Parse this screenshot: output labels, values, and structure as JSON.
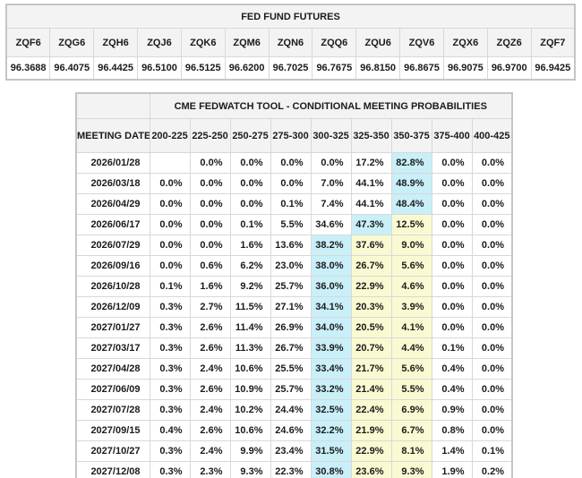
{
  "futures_table": {
    "title": "FED FUND FUTURES",
    "columns": [
      "ZQF6",
      "ZQG6",
      "ZQH6",
      "ZQJ6",
      "ZQK6",
      "ZQM6",
      "ZQN6",
      "ZQQ6",
      "ZQU6",
      "ZQV6",
      "ZQX6",
      "ZQZ6",
      "ZQF7"
    ],
    "values": [
      "96.3688",
      "96.4075",
      "96.4425",
      "96.5100",
      "96.5125",
      "96.6200",
      "96.7025",
      "96.7675",
      "96.8150",
      "96.8675",
      "96.9075",
      "96.9700",
      "96.9425"
    ]
  },
  "fedwatch_table": {
    "title": "CME FEDWATCH TOOL - CONDITIONAL MEETING PROBABILITIES",
    "date_header": "MEETING DATE",
    "range_headers": [
      "200-225",
      "225-250",
      "250-275",
      "275-300",
      "300-325",
      "325-350",
      "350-375",
      "375-400",
      "400-425"
    ],
    "rows": [
      {
        "date": "2026/01/28",
        "values": [
          "",
          "0.0%",
          "0.0%",
          "0.0%",
          "0.0%",
          "17.2%",
          "82.8%",
          "0.0%",
          "0.0%"
        ],
        "highlights": [
          "",
          "",
          "",
          "",
          "",
          "",
          "c",
          "",
          ""
        ]
      },
      {
        "date": "2026/03/18",
        "values": [
          "0.0%",
          "0.0%",
          "0.0%",
          "0.0%",
          "7.0%",
          "44.1%",
          "48.9%",
          "0.0%",
          "0.0%"
        ],
        "highlights": [
          "",
          "",
          "",
          "",
          "",
          "",
          "c",
          "",
          ""
        ]
      },
      {
        "date": "2026/04/29",
        "values": [
          "0.0%",
          "0.0%",
          "0.0%",
          "0.1%",
          "7.4%",
          "44.1%",
          "48.4%",
          "0.0%",
          "0.0%"
        ],
        "highlights": [
          "",
          "",
          "",
          "",
          "",
          "",
          "c",
          "",
          ""
        ]
      },
      {
        "date": "2026/06/17",
        "values": [
          "0.0%",
          "0.0%",
          "0.1%",
          "5.5%",
          "34.6%",
          "47.3%",
          "12.5%",
          "0.0%",
          "0.0%"
        ],
        "highlights": [
          "",
          "",
          "",
          "",
          "",
          "c",
          "y",
          "",
          ""
        ]
      },
      {
        "date": "2026/07/29",
        "values": [
          "0.0%",
          "0.0%",
          "1.6%",
          "13.6%",
          "38.2%",
          "37.6%",
          "9.0%",
          "0.0%",
          "0.0%"
        ],
        "highlights": [
          "",
          "",
          "",
          "",
          "c",
          "y",
          "y",
          "",
          ""
        ]
      },
      {
        "date": "2026/09/16",
        "values": [
          "0.0%",
          "0.6%",
          "6.2%",
          "23.0%",
          "38.0%",
          "26.7%",
          "5.6%",
          "0.0%",
          "0.0%"
        ],
        "highlights": [
          "",
          "",
          "",
          "",
          "c",
          "y",
          "y",
          "",
          ""
        ]
      },
      {
        "date": "2026/10/28",
        "values": [
          "0.1%",
          "1.6%",
          "9.2%",
          "25.7%",
          "36.0%",
          "22.9%",
          "4.6%",
          "0.0%",
          "0.0%"
        ],
        "highlights": [
          "",
          "",
          "",
          "",
          "c",
          "y",
          "y",
          "",
          ""
        ]
      },
      {
        "date": "2026/12/09",
        "values": [
          "0.3%",
          "2.7%",
          "11.5%",
          "27.1%",
          "34.1%",
          "20.3%",
          "3.9%",
          "0.0%",
          "0.0%"
        ],
        "highlights": [
          "",
          "",
          "",
          "",
          "c",
          "y",
          "y",
          "",
          ""
        ]
      },
      {
        "date": "2027/01/27",
        "values": [
          "0.3%",
          "2.6%",
          "11.4%",
          "26.9%",
          "34.0%",
          "20.5%",
          "4.1%",
          "0.0%",
          "0.0%"
        ],
        "highlights": [
          "",
          "",
          "",
          "",
          "c",
          "y",
          "y",
          "",
          ""
        ]
      },
      {
        "date": "2027/03/17",
        "values": [
          "0.3%",
          "2.6%",
          "11.3%",
          "26.7%",
          "33.9%",
          "20.7%",
          "4.4%",
          "0.1%",
          "0.0%"
        ],
        "highlights": [
          "",
          "",
          "",
          "",
          "c",
          "y",
          "y",
          "",
          ""
        ]
      },
      {
        "date": "2027/04/28",
        "values": [
          "0.3%",
          "2.4%",
          "10.6%",
          "25.5%",
          "33.4%",
          "21.7%",
          "5.6%",
          "0.4%",
          "0.0%"
        ],
        "highlights": [
          "",
          "",
          "",
          "",
          "c",
          "y",
          "y",
          "",
          ""
        ]
      },
      {
        "date": "2027/06/09",
        "values": [
          "0.3%",
          "2.6%",
          "10.9%",
          "25.7%",
          "33.2%",
          "21.4%",
          "5.5%",
          "0.4%",
          "0.0%"
        ],
        "highlights": [
          "",
          "",
          "",
          "",
          "c",
          "y",
          "y",
          "",
          ""
        ]
      },
      {
        "date": "2027/07/28",
        "values": [
          "0.3%",
          "2.4%",
          "10.2%",
          "24.4%",
          "32.5%",
          "22.4%",
          "6.9%",
          "0.9%",
          "0.0%"
        ],
        "highlights": [
          "",
          "",
          "",
          "",
          "c",
          "y",
          "y",
          "",
          ""
        ]
      },
      {
        "date": "2027/09/15",
        "values": [
          "0.4%",
          "2.6%",
          "10.6%",
          "24.6%",
          "32.2%",
          "21.9%",
          "6.7%",
          "0.8%",
          "0.0%"
        ],
        "highlights": [
          "",
          "",
          "",
          "",
          "c",
          "y",
          "y",
          "",
          ""
        ]
      },
      {
        "date": "2027/10/27",
        "values": [
          "0.3%",
          "2.4%",
          "9.9%",
          "23.4%",
          "31.5%",
          "22.9%",
          "8.1%",
          "1.4%",
          "0.1%"
        ],
        "highlights": [
          "",
          "",
          "",
          "",
          "c",
          "y",
          "y",
          "",
          ""
        ]
      },
      {
        "date": "2027/12/08",
        "values": [
          "0.3%",
          "2.3%",
          "9.3%",
          "22.3%",
          "30.8%",
          "23.6%",
          "9.3%",
          "1.9%",
          "0.2%"
        ],
        "highlights": [
          "",
          "",
          "",
          "",
          "c",
          "y",
          "y",
          "",
          ""
        ]
      }
    ]
  },
  "colors": {
    "highlight_cyan": "#c9eff8",
    "highlight_yellow": "#fafad2",
    "header_bg": "#f3f3f3",
    "border": "#d8d8d8"
  }
}
